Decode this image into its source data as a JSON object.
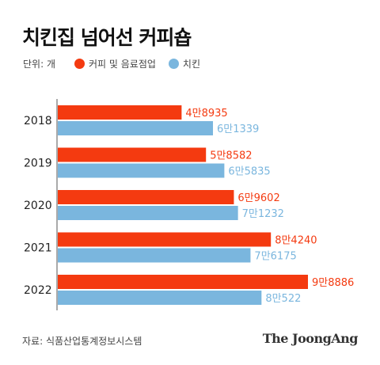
{
  "title": "치킨집 넘어선 커피숍",
  "legend": {
    "unit": "단위: 개",
    "items": [
      {
        "label": "커피 및 음료점업",
        "color": "#f43a10"
      },
      {
        "label": "치킨",
        "color": "#7ab6de"
      }
    ]
  },
  "chart_data": {
    "type": "bar",
    "orientation": "horizontal",
    "title": "치킨집 넘어선 커피숍",
    "unit": "단위: 개",
    "categories": [
      "2018",
      "2019",
      "2020",
      "2021",
      "2022"
    ],
    "series": [
      {
        "name": "커피 및 음료점업",
        "color": "#f43a10",
        "values": [
          48935,
          58582,
          69602,
          84240,
          98886
        ],
        "labels": [
          "4만8935",
          "5만8582",
          "6만9602",
          "8만4240",
          "9만8886"
        ]
      },
      {
        "name": "치킨",
        "color": "#7ab6de",
        "values": [
          61339,
          65835,
          71232,
          76175,
          80522
        ],
        "labels": [
          "6만1339",
          "6만5835",
          "7만1232",
          "7만6175",
          "8만522"
        ]
      }
    ],
    "xlim": [
      0,
      98886
    ],
    "grid": false,
    "legend_position": "top-left"
  },
  "footer": {
    "source": "자료: 식품산업통계정보시스템",
    "logo": "The JoongAng"
  }
}
